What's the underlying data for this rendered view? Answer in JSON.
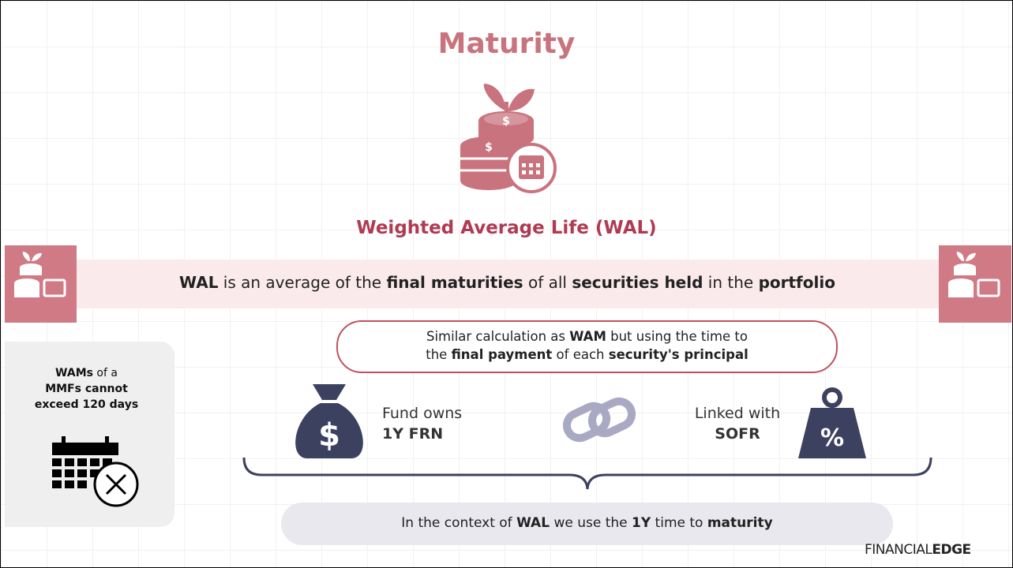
{
  "title": "Maturity",
  "subtitle": "Weighted Average Life (WAL)",
  "definition": [
    {
      "text": "WAL",
      "bold": true
    },
    {
      "text": " is an average of the ",
      "bold": false
    },
    {
      "text": "final maturities",
      "bold": true
    },
    {
      "text": " of all ",
      "bold": false
    },
    {
      "text": "securities held",
      "bold": true
    },
    {
      "text": " in the ",
      "bold": false
    },
    {
      "text": "portfolio",
      "bold": true
    }
  ],
  "note": [
    [
      {
        "text": "Similar calculation as ",
        "bold": false
      },
      {
        "text": "WAM",
        "bold": true
      },
      {
        "text": " but using the time to",
        "bold": false
      }
    ],
    [
      {
        "text": "the ",
        "bold": false
      },
      {
        "text": "final payment",
        "bold": true
      },
      {
        "text": " of each ",
        "bold": false
      },
      {
        "text": "security's principal",
        "bold": true
      }
    ]
  ],
  "side_note": [
    [
      {
        "text": "WAMs",
        "bold": true
      },
      {
        "text": " of a",
        "bold": false
      }
    ],
    [
      {
        "text": "MMFs cannot",
        "bold": true
      }
    ],
    [
      {
        "text": "exceed 120 days",
        "bold": true
      }
    ]
  ],
  "fund": {
    "label": "Fund owns",
    "value": "1Y FRN"
  },
  "link": {
    "label": "Linked with",
    "value": "SOFR"
  },
  "icons": {
    "dollar": "$",
    "percent": "%"
  },
  "conclusion": [
    {
      "text": "In the context of ",
      "bold": false
    },
    {
      "text": "WAL",
      "bold": true
    },
    {
      "text": " we use the ",
      "bold": false
    },
    {
      "text": "1Y",
      "bold": true
    },
    {
      "text": " time to ",
      "bold": false
    },
    {
      "text": "maturity",
      "bold": true
    }
  ],
  "logo": {
    "light": "FINANCIAL",
    "bold": "EDGE"
  }
}
